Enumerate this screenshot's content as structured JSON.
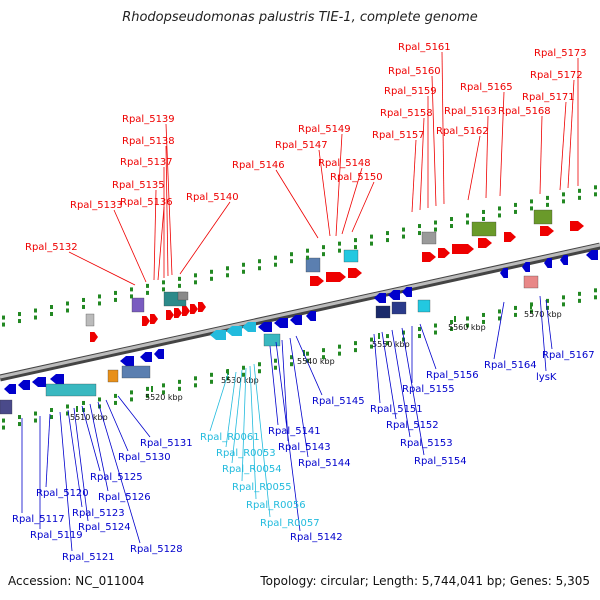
{
  "title": "Rhodopseudomonas palustris TIE-1, complete genome",
  "footer": {
    "accession": "Accession: NC_011004",
    "summary": "Topology: circular; Length: 5,744,041 bp; Genes: 5,305"
  },
  "colors": {
    "forward": "#ee0000",
    "reverse": "#0000cc",
    "rna": "#22bbdd",
    "backbone": "#888888",
    "tick": "#228822"
  },
  "scale_labels": [
    "5510 kbp",
    "5520 kbp",
    "5530 kbp",
    "5540 kbp",
    "5550 kbp",
    "5560 kbp",
    "5570 kbp"
  ],
  "top_labels": [
    "Rpal_5132",
    "Rpal_5133",
    "Rpal_5135",
    "Rpal_5136",
    "Rpal_5137",
    "Rpal_5138",
    "Rpal_5139",
    "Rpal_5140",
    "Rpal_5146",
    "Rpal_5147",
    "Rpal_5148",
    "Rpal_5149",
    "Rpal_5150",
    "Rpal_5157",
    "Rpal_5158",
    "Rpal_5159",
    "Rpal_5160",
    "Rpal_5161",
    "Rpal_5162",
    "Rpal_5163",
    "Rpal_5165",
    "Rpal_5168",
    "Rpal_5171",
    "Rpal_5172",
    "Rpal_5173"
  ],
  "bottom_labels": [
    "Rpal_5117",
    "Rpal_5119",
    "Rpal_5120",
    "Rpal_5121",
    "Rpal_5123",
    "Rpal_5124",
    "Rpal_5125",
    "Rpal_5126",
    "Rpal_5128",
    "Rpal_5130",
    "Rpal_5131",
    "Rpal_R0061",
    "Rpal_R0053",
    "Rpal_R0054",
    "Rpal_R0055",
    "Rpal_R0056",
    "Rpal_R0057",
    "Rpal_5141",
    "Rpal_5142",
    "Rpal_5143",
    "Rpal_5144",
    "Rpal_5145",
    "Rpal_5151",
    "Rpal_5152",
    "Rpal_5153",
    "Rpal_5154",
    "Rpal_5155",
    "Rpal_5156",
    "Rpal_5164",
    "Rpal_5167",
    "lysK"
  ]
}
